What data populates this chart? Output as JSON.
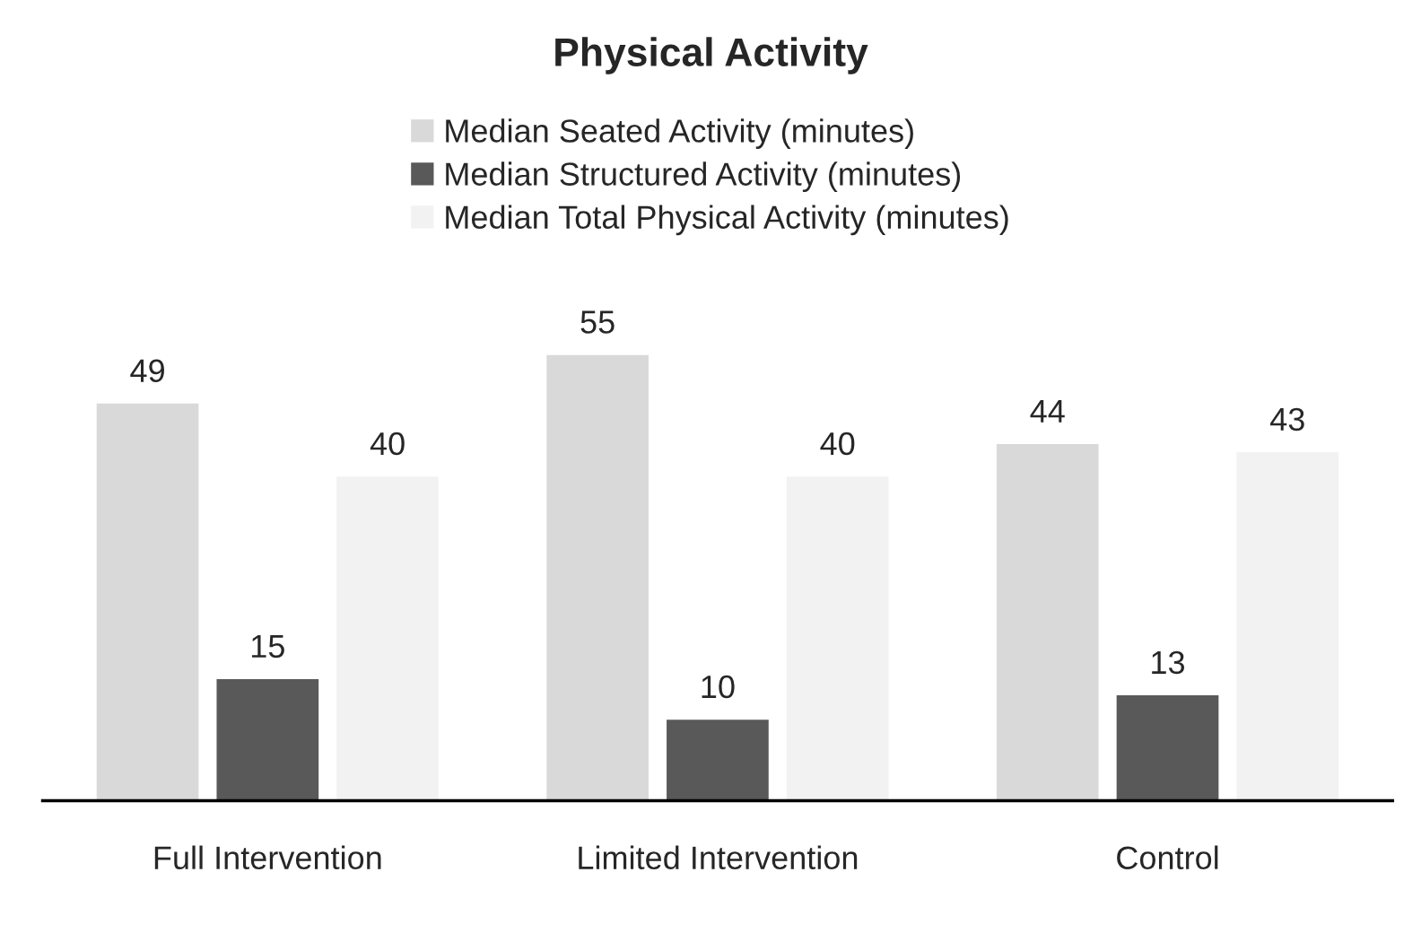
{
  "chart_data": {
    "type": "bar",
    "title": "Physical Activity",
    "categories": [
      "Full Intervention",
      "Limited Intervention",
      "Control"
    ],
    "series": [
      {
        "name": "Median Seated Activity (minutes)",
        "color": "#d9d9d9",
        "values": [
          49,
          55,
          44
        ]
      },
      {
        "name": "Median Structured Activity (minutes)",
        "color": "#595959",
        "values": [
          15,
          10,
          13
        ]
      },
      {
        "name": "Median Total Physical Activity (minutes)",
        "color": "#f2f2f2",
        "values": [
          40,
          40,
          43
        ]
      }
    ],
    "data_labels": true,
    "legend": "top",
    "grid": false
  }
}
